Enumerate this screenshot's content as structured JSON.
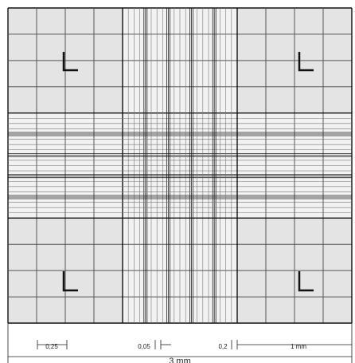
{
  "labels": {
    "small_square": "0,25",
    "tiny_square": "0,05",
    "medium_square": "0,2",
    "large_square": "1 mm",
    "total": "3 mm"
  }
}
